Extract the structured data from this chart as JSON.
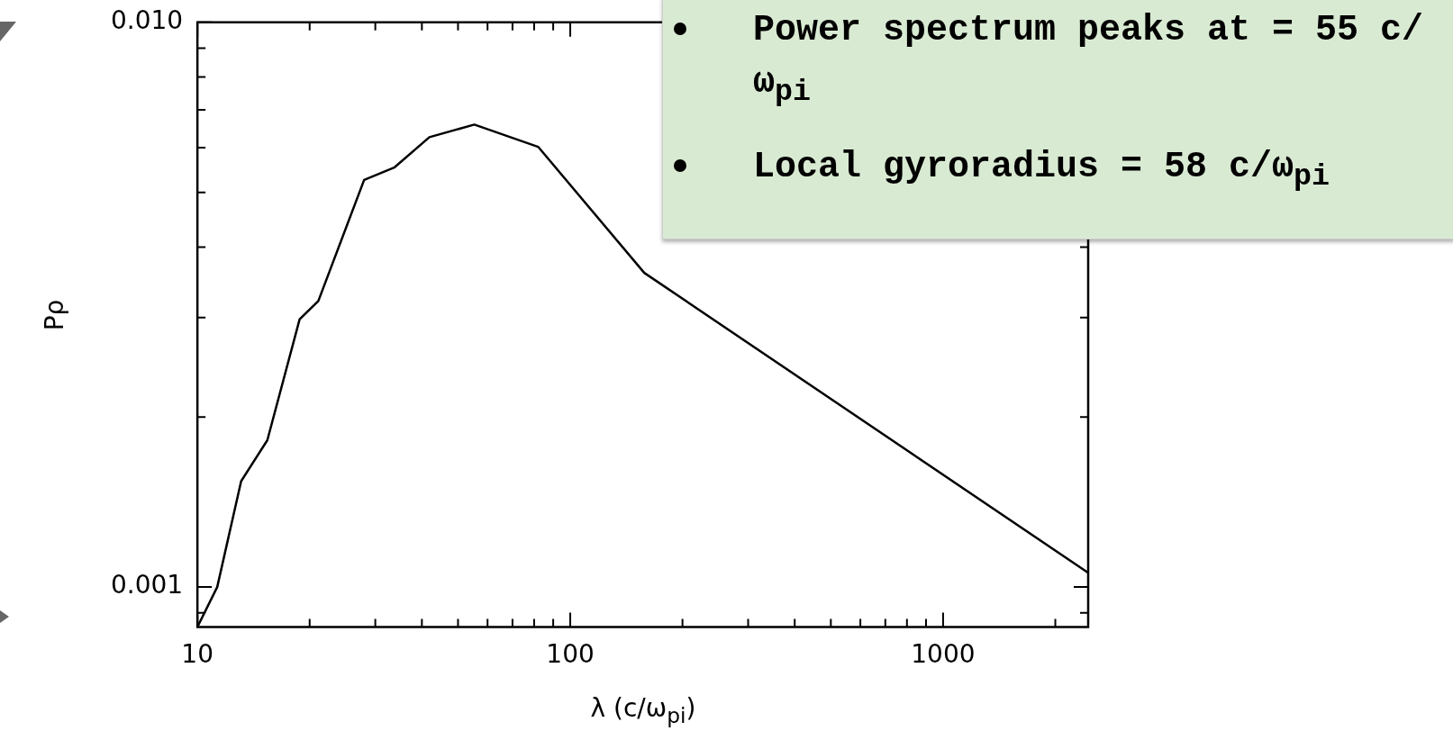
{
  "chart_data": {
    "type": "line",
    "xlabel": "λ (c/ω$_{pi}$)",
    "ylabel": "Pρ",
    "log": "xy",
    "x": [
      10,
      11.3,
      13.1,
      15.4,
      18.8,
      21.1,
      28.0,
      33.7,
      41.9,
      55.3,
      82.0,
      158,
      2450
    ],
    "series": [
      {
        "color": "#000000",
        "values": [
          0.00085,
          0.001,
          0.00154,
          0.00182,
          0.00298,
          0.00321,
          0.00526,
          0.00553,
          0.00626,
          0.00659,
          0.00602,
          0.0036,
          0.00106
        ]
      }
    ],
    "xlim": [
      10,
      2450
    ],
    "ylim": [
      0.00085,
      0.01
    ],
    "xticks": [
      10,
      {
        "value": 20,
        "label": null
      },
      {
        "value": 30,
        "label": null
      },
      {
        "value": 40,
        "label": null
      },
      {
        "value": 50,
        "label": null
      },
      {
        "value": 60,
        "label": null
      },
      {
        "value": 70,
        "label": null
      },
      {
        "value": 80,
        "label": null
      },
      {
        "value": 90,
        "label": null
      },
      100,
      {
        "value": 200,
        "label": null
      },
      {
        "value": 300,
        "label": null
      },
      {
        "value": 400,
        "label": null
      },
      {
        "value": 500,
        "label": null
      },
      {
        "value": 600,
        "label": null
      },
      {
        "value": 700,
        "label": null
      },
      {
        "value": 800,
        "label": null
      },
      {
        "value": 900,
        "label": null
      },
      1000,
      {
        "value": 2000,
        "label": null
      }
    ],
    "yticks": [
      {
        "value": 0.0009,
        "label": null
      },
      0.001,
      {
        "value": 0.002,
        "label": null
      },
      {
        "value": 0.003,
        "label": null
      },
      {
        "value": 0.004,
        "label": null
      },
      {
        "value": 0.005,
        "label": null
      },
      {
        "value": 0.006,
        "label": null
      },
      {
        "value": 0.007,
        "label": null
      },
      {
        "value": 0.008,
        "label": null
      },
      {
        "value": 0.009,
        "label": null
      },
      {
        "value": 0.01,
        "label": "0.010"
      }
    ],
    "annotations": [
      "Power spectrum peaks at = 55 c/ω$_{pi}$",
      "Local gyroradius = 58 c/ω$_{pi}$"
    ]
  }
}
